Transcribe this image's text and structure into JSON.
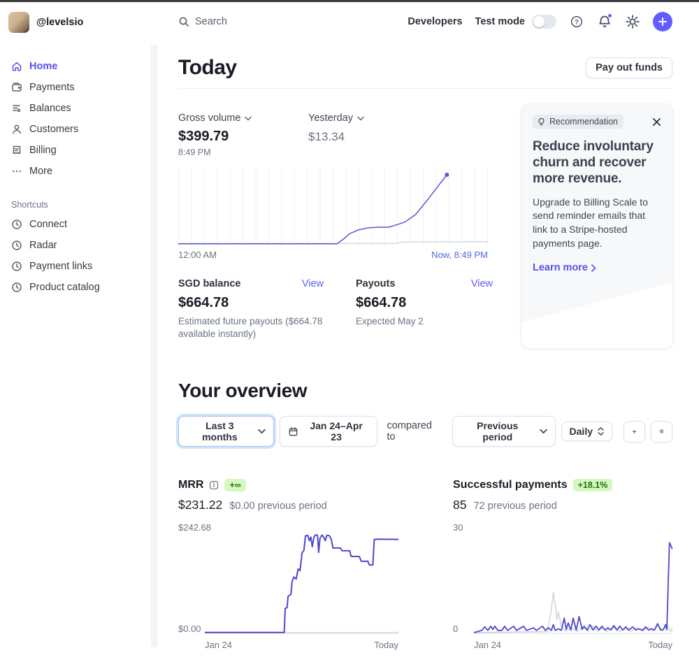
{
  "header": {
    "account_name": "@levelsio",
    "search_label": "Search",
    "developers_label": "Developers",
    "test_mode_label": "Test mode",
    "test_mode_on": false
  },
  "sidebar": {
    "items": [
      {
        "label": "Home",
        "icon": "home-icon",
        "active": true
      },
      {
        "label": "Payments",
        "icon": "payments-icon"
      },
      {
        "label": "Balances",
        "icon": "balances-icon"
      },
      {
        "label": "Customers",
        "icon": "customers-icon"
      },
      {
        "label": "Billing",
        "icon": "billing-icon"
      },
      {
        "label": "More",
        "icon": "more-icon"
      }
    ],
    "shortcuts_title": "Shortcuts",
    "shortcuts": [
      {
        "label": "Connect",
        "icon": "clock-icon"
      },
      {
        "label": "Radar",
        "icon": "clock-icon"
      },
      {
        "label": "Payment links",
        "icon": "clock-icon"
      },
      {
        "label": "Product catalog",
        "icon": "clock-icon"
      }
    ]
  },
  "today": {
    "title": "Today",
    "payout_button_label": "Pay out funds",
    "gross_volume_label": "Gross volume",
    "gross_volume_value": "$399.79",
    "gross_volume_time": "8:49 PM",
    "yesterday_label": "Yesterday",
    "yesterday_value": "$13.34",
    "balances": [
      {
        "label": "SGD balance",
        "view_label": "View",
        "value": "$664.78",
        "caption": "Estimated future payouts ($664.78 available instantly)"
      },
      {
        "label": "Payouts",
        "view_label": "View",
        "value": "$664.78",
        "caption": "Expected May 2"
      }
    ]
  },
  "recommendation": {
    "badge": "Recommendation",
    "title": "Reduce involuntary churn and recover more revenue.",
    "body": "Upgrade to Billing Scale to send reminder emails that link to a Stripe-hosted payments page.",
    "cta": "Learn more"
  },
  "overview": {
    "title": "Your overview",
    "range_label": "Last 3 months",
    "date_range": "Jan 24–Apr 23",
    "compared_to_label": "compared to",
    "compare_value": "Previous period",
    "granularity": "Daily",
    "metrics": [
      {
        "name": "MRR",
        "badge": "+∞",
        "value": "$231.22",
        "previous": "$0.00 previous period"
      },
      {
        "name": "Successful payments",
        "badge": "+18.1%",
        "value": "85",
        "previous": "72 previous period"
      }
    ]
  },
  "colors": {
    "accent": "#635bff",
    "active_nav": "#5851ea",
    "link": "#625afa",
    "chart_line": "#5b55d6",
    "chart_previous": "#d3d6de",
    "now_label": "#5469d4",
    "positive_badge_bg": "#d7f7c2",
    "positive_badge_text": "#217005",
    "notification_dot": "#4e6ef2"
  },
  "icons": {
    "search-icon": "magnifier",
    "help-icon": "question-mark-circle",
    "notifications-icon": "bell",
    "settings-icon": "gear",
    "create-icon": "plus-circle",
    "home-icon": "house",
    "payments-icon": "wallet",
    "balances-icon": "stacked-lines",
    "customers-icon": "person",
    "billing-icon": "invoice",
    "more-icon": "ellipsis",
    "clock-icon": "clock",
    "calendar-icon": "calendar",
    "close-icon": "x",
    "lightbulb-icon": "lightbulb",
    "info-icon": "info-square",
    "chevron-down-icon": "chevron-down",
    "chevron-right-icon": "chevron-right",
    "sort-icon": "up-down-chevrons"
  },
  "chart_data": [
    {
      "type": "line",
      "title": "Gross volume today vs yesterday",
      "x_start": "12:00 AM",
      "x_end": "Now, 8:49 PM",
      "xlim": [
        0,
        24
      ],
      "ylim": [
        0,
        420
      ],
      "gridlines": 24,
      "baseline": false,
      "top_pad": 6,
      "legend": "none",
      "series": [
        {
          "name": "Yesterday",
          "color": "#d3d6de",
          "width": 1.4,
          "points": [
            [
              0,
              3
            ],
            [
              16.9,
              3
            ],
            [
              17.3,
              10
            ],
            [
              18,
              12
            ],
            [
              24,
              13.34
            ]
          ]
        },
        {
          "name": "Today",
          "color": "#5b55d6",
          "width": 1.5,
          "end_dot": true,
          "points": [
            [
              0,
              1
            ],
            [
              12.3,
              1
            ],
            [
              12.8,
              28
            ],
            [
              13.3,
              60
            ],
            [
              14,
              82
            ],
            [
              14.7,
              93
            ],
            [
              15.5,
              97
            ],
            [
              16.3,
              97
            ],
            [
              16.9,
              110
            ],
            [
              17.6,
              128
            ],
            [
              18.4,
              170
            ],
            [
              19.4,
              262
            ],
            [
              20.3,
              350
            ],
            [
              20.82,
              399.79
            ]
          ]
        }
      ]
    },
    {
      "type": "line",
      "title": "MRR",
      "x_start": "Jan 24",
      "x_end": "Today",
      "ymax_label": "$242.68",
      "ymin_label": "$0.00",
      "xlim": [
        0,
        1
      ],
      "ylim": [
        0,
        242.68
      ],
      "gridlines": 0,
      "baseline": true,
      "top_pad": 4,
      "legend": "none",
      "series": [
        {
          "name": "Previous period",
          "color": "#d3d6de",
          "width": 1.4,
          "points": [
            [
              0,
              0
            ],
            [
              1,
              0
            ]
          ]
        },
        {
          "name": "MRR",
          "color": "#4f48cc",
          "width": 2,
          "points": [
            [
              0,
              0.5
            ],
            [
              0.41,
              0.5
            ],
            [
              0.415,
              60
            ],
            [
              0.425,
              62
            ],
            [
              0.43,
              90
            ],
            [
              0.445,
              95
            ],
            [
              0.45,
              125
            ],
            [
              0.46,
              138
            ],
            [
              0.472,
              133
            ],
            [
              0.482,
              158
            ],
            [
              0.492,
              154
            ],
            [
              0.502,
              198
            ],
            [
              0.512,
              204
            ],
            [
              0.52,
              240
            ],
            [
              0.532,
              241
            ],
            [
              0.54,
              228
            ],
            [
              0.548,
              237
            ],
            [
              0.555,
              213
            ],
            [
              0.563,
              236
            ],
            [
              0.57,
              242
            ],
            [
              0.582,
              242
            ],
            [
              0.588,
              199
            ],
            [
              0.595,
              234
            ],
            [
              0.605,
              242
            ],
            [
              0.615,
              236
            ],
            [
              0.622,
              228
            ],
            [
              0.63,
              241
            ],
            [
              0.642,
              241
            ],
            [
              0.652,
              233
            ],
            [
              0.662,
              210
            ],
            [
              0.7,
              210
            ],
            [
              0.71,
              203
            ],
            [
              0.748,
              203
            ],
            [
              0.756,
              189
            ],
            [
              0.798,
              189
            ],
            [
              0.808,
              177
            ],
            [
              0.842,
              177
            ],
            [
              0.85,
              168
            ],
            [
              0.868,
              168
            ],
            [
              0.875,
              231
            ],
            [
              0.89,
              232
            ],
            [
              1,
              231.22
            ]
          ]
        }
      ]
    },
    {
      "type": "line",
      "title": "Successful payments",
      "x_start": "Jan 24",
      "x_end": "Today",
      "ymax_label": "30",
      "ymin_label": "0",
      "xlim": [
        0,
        1
      ],
      "ylim": [
        0,
        30
      ],
      "gridlines": 0,
      "baseline": true,
      "top_pad": 6,
      "legend": "none",
      "series": [
        {
          "name": "Previous period",
          "color": "#ced1da",
          "width": 1.4,
          "points": [
            [
              0,
              0
            ],
            [
              0.37,
              0.3
            ],
            [
              0.39,
              7
            ],
            [
              0.4,
              12.5
            ],
            [
              0.412,
              8
            ],
            [
              0.418,
              4
            ],
            [
              0.425,
              6.5
            ],
            [
              0.44,
              2
            ],
            [
              0.46,
              0.5
            ],
            [
              0.49,
              1.5
            ],
            [
              0.52,
              0.4
            ],
            [
              0.55,
              1.8
            ],
            [
              0.575,
              0.4
            ],
            [
              0.6,
              2
            ],
            [
              0.62,
              0.4
            ],
            [
              0.65,
              1.5
            ],
            [
              0.67,
              0.4
            ],
            [
              0.7,
              1.8
            ],
            [
              0.73,
              0.4
            ],
            [
              0.76,
              1.2
            ],
            [
              0.79,
              0.4
            ],
            [
              0.82,
              1.5
            ],
            [
              0.85,
              0.4
            ],
            [
              0.88,
              1.8
            ],
            [
              0.9,
              0.4
            ],
            [
              0.93,
              2.5
            ],
            [
              0.95,
              0.4
            ],
            [
              0.97,
              2.8
            ],
            [
              0.99,
              0.4
            ],
            [
              1,
              1.5
            ]
          ]
        },
        {
          "name": "Successful payments",
          "color": "#4f48cc",
          "width": 1.8,
          "points": [
            [
              0,
              0
            ],
            [
              0.04,
              0.7
            ],
            [
              0.055,
              1.8
            ],
            [
              0.07,
              0.7
            ],
            [
              0.085,
              2
            ],
            [
              0.095,
              1
            ],
            [
              0.105,
              2
            ],
            [
              0.12,
              0.7
            ],
            [
              0.14,
              0.7
            ],
            [
              0.155,
              2
            ],
            [
              0.17,
              0.7
            ],
            [
              0.2,
              2
            ],
            [
              0.215,
              0.7
            ],
            [
              0.25,
              2
            ],
            [
              0.265,
              0.7
            ],
            [
              0.3,
              1.5
            ],
            [
              0.315,
              0.7
            ],
            [
              0.345,
              2
            ],
            [
              0.36,
              0.7
            ],
            [
              0.375,
              1.5
            ],
            [
              0.39,
              0.7
            ],
            [
              0.4,
              2.5
            ],
            [
              0.41,
              0.7
            ],
            [
              0.425,
              1.2
            ],
            [
              0.44,
              0.7
            ],
            [
              0.455,
              4.5
            ],
            [
              0.465,
              1
            ],
            [
              0.475,
              3
            ],
            [
              0.488,
              0.8
            ],
            [
              0.5,
              4.5
            ],
            [
              0.515,
              0.8
            ],
            [
              0.53,
              5
            ],
            [
              0.545,
              1
            ],
            [
              0.555,
              2
            ],
            [
              0.57,
              0.8
            ],
            [
              0.585,
              2.5
            ],
            [
              0.6,
              0.8
            ],
            [
              0.615,
              2
            ],
            [
              0.63,
              0.8
            ],
            [
              0.645,
              2
            ],
            [
              0.66,
              0.8
            ],
            [
              0.675,
              1.5
            ],
            [
              0.69,
              0.8
            ],
            [
              0.705,
              2.2
            ],
            [
              0.72,
              0.8
            ],
            [
              0.735,
              2
            ],
            [
              0.75,
              0.8
            ],
            [
              0.765,
              1.8
            ],
            [
              0.78,
              0.8
            ],
            [
              0.8,
              1.8
            ],
            [
              0.815,
              0.8
            ],
            [
              0.83,
              1.2
            ],
            [
              0.85,
              0.8
            ],
            [
              0.865,
              1.8
            ],
            [
              0.88,
              0.8
            ],
            [
              0.895,
              1.2
            ],
            [
              0.91,
              0.8
            ],
            [
              0.925,
              2.8
            ],
            [
              0.94,
              0.8
            ],
            [
              0.955,
              1
            ],
            [
              0.965,
              2.5
            ],
            [
              0.972,
              0.9
            ],
            [
              0.985,
              28
            ],
            [
              1,
              26
            ]
          ]
        }
      ]
    }
  ]
}
